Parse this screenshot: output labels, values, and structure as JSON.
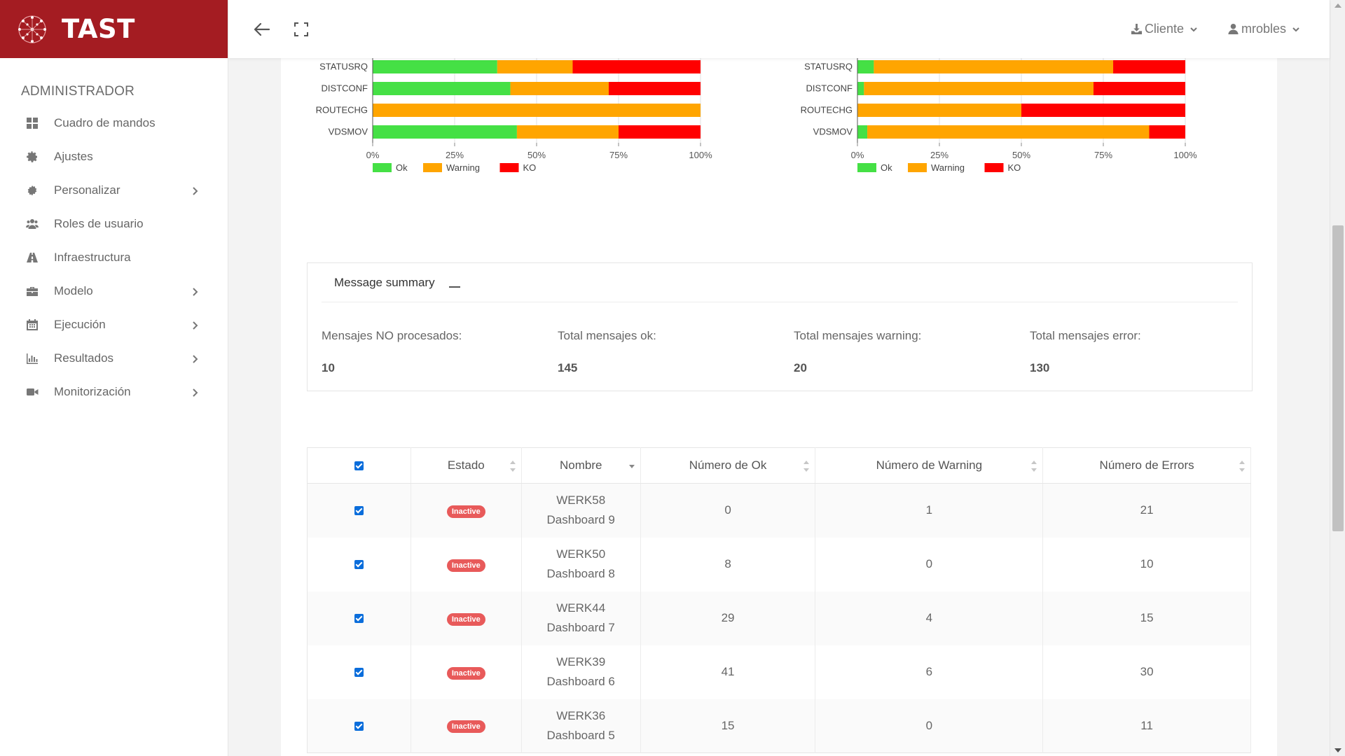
{
  "app": {
    "name": "TAST"
  },
  "sidebar": {
    "role": "ADMINISTRADOR",
    "items": [
      {
        "label": "Cuadro de mandos",
        "icon": "dashboard-icon",
        "has_children": false
      },
      {
        "label": "Ajustes",
        "icon": "gear-icon",
        "has_children": false
      },
      {
        "label": "Personalizar",
        "icon": "cog-icon",
        "has_children": true
      },
      {
        "label": "Roles de usuario",
        "icon": "users-icon",
        "has_children": false
      },
      {
        "label": "Infraestructura",
        "icon": "road-icon",
        "has_children": false
      },
      {
        "label": "Modelo",
        "icon": "briefcase-icon",
        "has_children": true
      },
      {
        "label": "Ejecución",
        "icon": "calendar-icon",
        "has_children": true
      },
      {
        "label": "Resultados",
        "icon": "bar-chart-icon",
        "has_children": true
      },
      {
        "label": "Monitorización",
        "icon": "video-camera-icon",
        "has_children": true
      }
    ]
  },
  "topbar": {
    "client_label": "Cliente",
    "user_label": "mrobles"
  },
  "colors": {
    "ok": "#45e045",
    "warning": "#ffa500",
    "ko": "#ff0000",
    "brand": "#a41c22"
  },
  "chart_data": [
    {
      "type": "bar",
      "orientation": "horizontal",
      "stacked": true,
      "categories": [
        "STATUSRQ",
        "DISTCONF",
        "ROUTECHG",
        "VDSMOV"
      ],
      "series": [
        {
          "name": "Ok",
          "values": [
            38,
            42,
            0,
            44
          ]
        },
        {
          "name": "Warning",
          "values": [
            23,
            30,
            100,
            31
          ]
        },
        {
          "name": "KO",
          "values": [
            39,
            28,
            0,
            25
          ]
        }
      ],
      "xticks": [
        "0%",
        "25%",
        "50%",
        "75%",
        "100%"
      ],
      "xlim": [
        0,
        100
      ],
      "legend": "bottom-left"
    },
    {
      "type": "bar",
      "orientation": "horizontal",
      "stacked": true,
      "categories": [
        "STATUSRQ",
        "DISTCONF",
        "ROUTECHG",
        "VDSMOV"
      ],
      "series": [
        {
          "name": "Ok",
          "values": [
            5,
            2,
            0,
            3
          ]
        },
        {
          "name": "Warning",
          "values": [
            73,
            70,
            50,
            86
          ]
        },
        {
          "name": "KO",
          "values": [
            22,
            28,
            50,
            11
          ]
        }
      ],
      "xticks": [
        "0%",
        "25%",
        "50%",
        "75%",
        "100%"
      ],
      "xlim": [
        0,
        100
      ],
      "legend": "bottom-left"
    }
  ],
  "summary": {
    "title": "Message summary",
    "items": [
      {
        "label": "Mensajes NO procesados:",
        "value": "10"
      },
      {
        "label": "Total mensajes ok:",
        "value": "145"
      },
      {
        "label": "Total mensajes warning:",
        "value": "20"
      },
      {
        "label": "Total mensajes error:",
        "value": "130"
      }
    ]
  },
  "table": {
    "headers": {
      "estado": "Estado",
      "nombre": "Nombre",
      "ok": "Número de Ok",
      "warning": "Número de Warning",
      "errors": "Número de Errors"
    },
    "rows": [
      {
        "estado": "Inactive",
        "id": "WERK58",
        "dashboard": "Dashboard 9",
        "ok": "0",
        "warning": "1",
        "errors": "21"
      },
      {
        "estado": "Inactive",
        "id": "WERK50",
        "dashboard": "Dashboard 8",
        "ok": "8",
        "warning": "0",
        "errors": "10"
      },
      {
        "estado": "Inactive",
        "id": "WERK44",
        "dashboard": "Dashboard 7",
        "ok": "29",
        "warning": "4",
        "errors": "15"
      },
      {
        "estado": "Inactive",
        "id": "WERK39",
        "dashboard": "Dashboard 6",
        "ok": "41",
        "warning": "6",
        "errors": "30"
      },
      {
        "estado": "Inactive",
        "id": "WERK36",
        "dashboard": "Dashboard 5",
        "ok": "15",
        "warning": "0",
        "errors": "11"
      }
    ]
  }
}
